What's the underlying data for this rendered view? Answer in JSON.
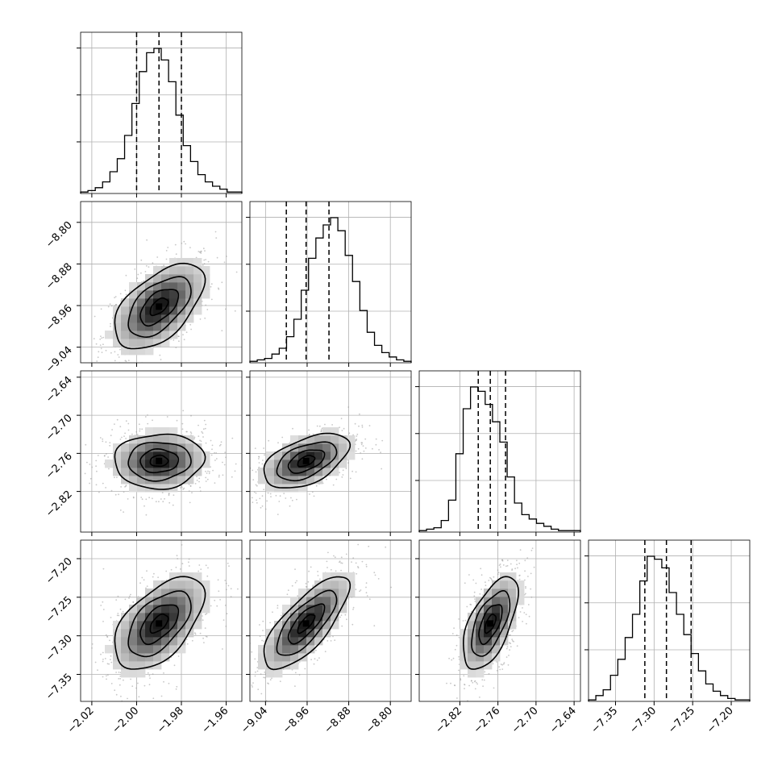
{
  "chart_data": {
    "type": "corner",
    "description_free": true,
    "parameters": [
      {
        "range": [
          -2.025,
          -1.953
        ],
        "ticks": [
          -2.02,
          -2.0,
          -1.98,
          -1.96
        ],
        "tick_labels": [
          "−2.02",
          "−2.00",
          "−1.98",
          "−1.96"
        ],
        "quantiles": [
          -2.0,
          -1.99,
          -1.98
        ]
      },
      {
        "range": [
          -9.07,
          -8.76
        ],
        "ticks": [
          -9.04,
          -8.96,
          -8.88,
          -8.8
        ],
        "tick_labels": [
          "−9.04",
          "−8.96",
          "−8.88",
          "−8.80"
        ],
        "quantiles": [
          -9.0,
          -8.962,
          -8.918
        ]
      },
      {
        "range": [
          -2.884,
          -2.63
        ],
        "ticks": [
          -2.82,
          -2.76,
          -2.7,
          -2.64
        ],
        "tick_labels": [
          "−2.82",
          "−2.76",
          "−2.70",
          "−2.64"
        ],
        "quantiles": [
          -2.791,
          -2.772,
          -2.748
        ]
      },
      {
        "range": [
          -7.385,
          -7.176
        ],
        "ticks": [
          -7.35,
          -7.3,
          -7.25,
          -7.2
        ],
        "tick_labels": [
          "−7.35",
          "−7.30",
          "−7.25",
          "−7.20"
        ],
        "quantiles": [
          -7.312,
          -7.284,
          -7.252
        ]
      }
    ],
    "histograms": [
      [
        1,
        2,
        4,
        8,
        15,
        24,
        40,
        62,
        84,
        97,
        100,
        92,
        77,
        54,
        33,
        22,
        13,
        8,
        5,
        3,
        1,
        1
      ],
      [
        1,
        2,
        3,
        6,
        10,
        18,
        30,
        50,
        72,
        86,
        95,
        100,
        91,
        74,
        56,
        36,
        21,
        12,
        7,
        4,
        2,
        1
      ],
      [
        1,
        2,
        3,
        8,
        22,
        54,
        85,
        100,
        97,
        88,
        76,
        62,
        38,
        20,
        12,
        9,
        6,
        4,
        2,
        1,
        1,
        1
      ],
      [
        1,
        4,
        8,
        18,
        29,
        44,
        60,
        83,
        100,
        98,
        92,
        75,
        60,
        46,
        33,
        21,
        12,
        7,
        4,
        2,
        1,
        1
      ]
    ],
    "pairs": [
      {
        "row": 1,
        "col": 0,
        "rho": 0.55
      },
      {
        "row": 2,
        "col": 0,
        "rho": 0.05
      },
      {
        "row": 2,
        "col": 1,
        "rho": 0.5
      },
      {
        "row": 3,
        "col": 0,
        "rho": 0.55
      },
      {
        "row": 3,
        "col": 1,
        "rho": 0.75
      },
      {
        "row": 3,
        "col": 2,
        "rho": 0.6
      }
    ],
    "grid": true,
    "colors": {
      "lines": "#000000",
      "points": "#9a9a9a",
      "grid": "#b0b0b0"
    }
  }
}
